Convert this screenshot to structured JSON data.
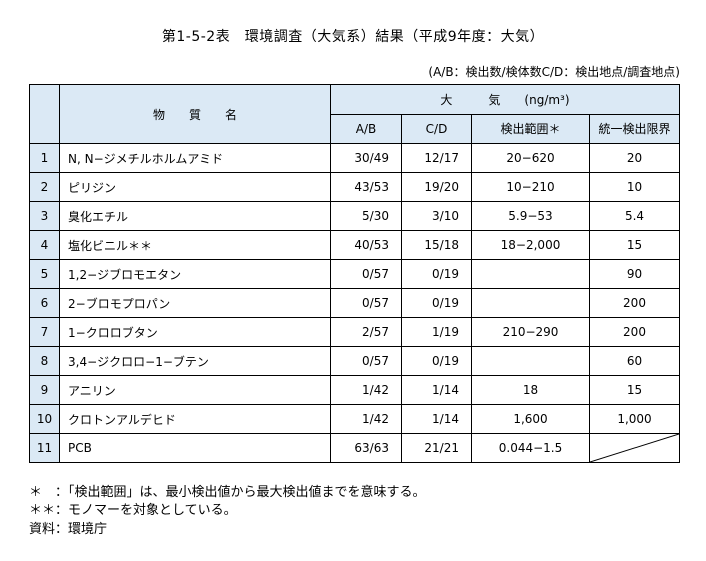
{
  "title": "第1-5-2表　環境調査（大気系）結果（平成9年度：大気）",
  "note": "(A/B：検出数/検体数C/D：検出地点/調査地点)",
  "header": {
    "substance": "物　　質　　名",
    "air": "大　　　気　　(ng/m³)",
    "ab": "A/B",
    "cd": "C/D",
    "range": "検出範囲＊",
    "limit": "統一検出限界"
  },
  "rows": [
    {
      "no": "1",
      "name": "N, N−ジメチルホルムアミド",
      "ab": "30/49",
      "cd": "12/17",
      "range": "20−620",
      "limit": "20"
    },
    {
      "no": "2",
      "name": "ピリジン",
      "ab": "43/53",
      "cd": "19/20",
      "range": "10−210",
      "limit": "10"
    },
    {
      "no": "3",
      "name": "臭化エチル",
      "ab": "5/30",
      "cd": "3/10",
      "range": "5.9−53",
      "limit": "5.4"
    },
    {
      "no": "4",
      "name": "塩化ビニル＊＊",
      "ab": "40/53",
      "cd": "15/18",
      "range": "18−2,000",
      "limit": "15"
    },
    {
      "no": "5",
      "name": "1,2−ジブロモエタン",
      "ab": "0/57",
      "cd": "0/19",
      "range": "",
      "limit": "90"
    },
    {
      "no": "6",
      "name": "2−ブロモプロパン",
      "ab": "0/57",
      "cd": "0/19",
      "range": "",
      "limit": "200"
    },
    {
      "no": "7",
      "name": "1−クロロブタン",
      "ab": "2/57",
      "cd": "1/19",
      "range": "210−290",
      "limit": "200"
    },
    {
      "no": "8",
      "name": "3,4−ジクロロ−1−ブテン",
      "ab": "0/57",
      "cd": "0/19",
      "range": "",
      "limit": "60"
    },
    {
      "no": "9",
      "name": "アニリン",
      "ab": "1/42",
      "cd": "1/14",
      "range": "18",
      "limit": "15"
    },
    {
      "no": "10",
      "name": "クロトンアルデヒド",
      "ab": "1/42",
      "cd": "1/14",
      "range": "1,600",
      "limit": "1,000"
    },
    {
      "no": "11",
      "name": "PCB",
      "ab": "63/63",
      "cd": "21/21",
      "range": "0.044−1.5",
      "limit": ""
    }
  ],
  "footnotes": [
    "＊　：「検出範囲」は、最小検出値から最大検出値までを意味する。",
    "＊＊：モノマーを対象としている。",
    "資料：環境庁"
  ]
}
